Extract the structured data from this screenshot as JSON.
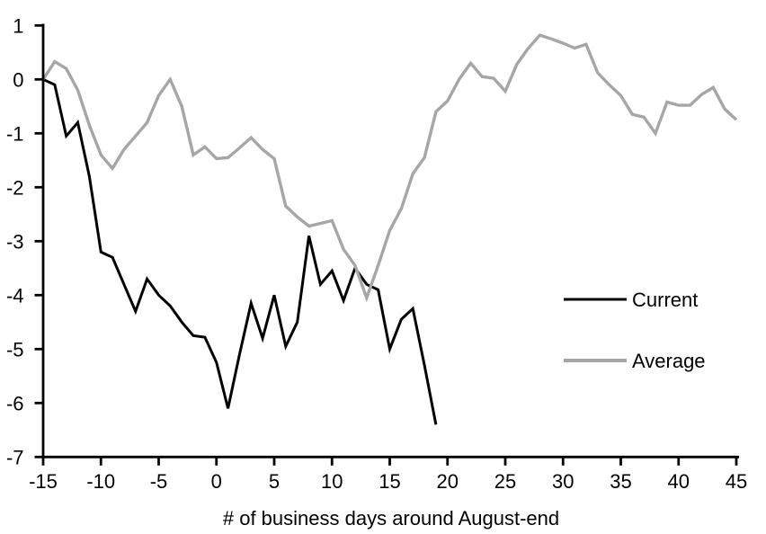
{
  "chart_data": {
    "type": "line",
    "title": "",
    "xlabel": "# of business days around August-end",
    "ylabel": "",
    "xlim": [
      -15,
      45
    ],
    "ylim": [
      -7,
      1
    ],
    "x_ticks": [
      -15,
      -10,
      -5,
      0,
      5,
      10,
      15,
      20,
      25,
      30,
      35,
      40,
      45
    ],
    "y_ticks": [
      1,
      0,
      -1,
      -2,
      -3,
      -4,
      -5,
      -6,
      -7
    ],
    "grid": false,
    "legend_position": "middle-right",
    "axis_color": "#000000",
    "text_color": "#000000",
    "background_color": "#ffffff",
    "series": [
      {
        "name": "Current",
        "color": "#000000",
        "line_width": 3,
        "x": [
          -15,
          -14,
          -13,
          -12,
          -11,
          -10,
          -9,
          -8,
          -7,
          -6,
          -5,
          -4,
          -3,
          -2,
          -1,
          0,
          1,
          2,
          3,
          4,
          5,
          6,
          7,
          8,
          9,
          10,
          11,
          12,
          13,
          14,
          15,
          16,
          17,
          18,
          19
        ],
        "values": [
          0,
          -0.1,
          -1.05,
          -0.8,
          -1.8,
          -3.2,
          -3.3,
          -3.8,
          -4.3,
          -3.7,
          -4.0,
          -4.2,
          -4.5,
          -4.75,
          -4.78,
          -5.25,
          -6.1,
          -5.1,
          -4.15,
          -4.8,
          -4.0,
          -4.95,
          -4.5,
          -2.9,
          -3.8,
          -3.55,
          -4.1,
          -3.5,
          -3.8,
          -3.9,
          -5.0,
          -4.45,
          -4.25,
          -5.3,
          -6.4
        ]
      },
      {
        "name": "Average",
        "color": "#a6a6a6",
        "line_width": 3.4,
        "x": [
          -15,
          -14,
          -13,
          -12,
          -11,
          -10,
          -9,
          -8,
          -7,
          -6,
          -5,
          -4,
          -3,
          -2,
          -1,
          0,
          1,
          2,
          3,
          4,
          5,
          6,
          7,
          8,
          9,
          10,
          11,
          12,
          13,
          14,
          15,
          16,
          17,
          18,
          19,
          20,
          21,
          22,
          23,
          24,
          25,
          26,
          27,
          28,
          29,
          30,
          31,
          32,
          33,
          34,
          35,
          36,
          37,
          38,
          39,
          40,
          41,
          42,
          43,
          44,
          45
        ],
        "values": [
          0,
          0.33,
          0.2,
          -0.2,
          -0.85,
          -1.4,
          -1.65,
          -1.3,
          -1.05,
          -0.8,
          -0.3,
          0,
          -0.5,
          -1.4,
          -1.25,
          -1.47,
          -1.45,
          -1.27,
          -1.08,
          -1.3,
          -1.47,
          -2.35,
          -2.55,
          -2.72,
          -2.67,
          -2.62,
          -3.15,
          -3.45,
          -4.05,
          -3.45,
          -2.8,
          -2.4,
          -1.75,
          -1.45,
          -0.6,
          -0.4,
          0,
          0.3,
          0.05,
          0.02,
          -0.22,
          0.28,
          0.58,
          0.82,
          0.75,
          0.67,
          0.58,
          0.65,
          0.12,
          -0.1,
          -0.3,
          -0.65,
          -0.7,
          -1.0,
          -0.42,
          -0.48,
          -0.48,
          -0.28,
          -0.15,
          -0.55,
          -0.75
        ]
      }
    ]
  },
  "legend": {
    "items": [
      {
        "label": "Current"
      },
      {
        "label": "Average"
      }
    ]
  }
}
